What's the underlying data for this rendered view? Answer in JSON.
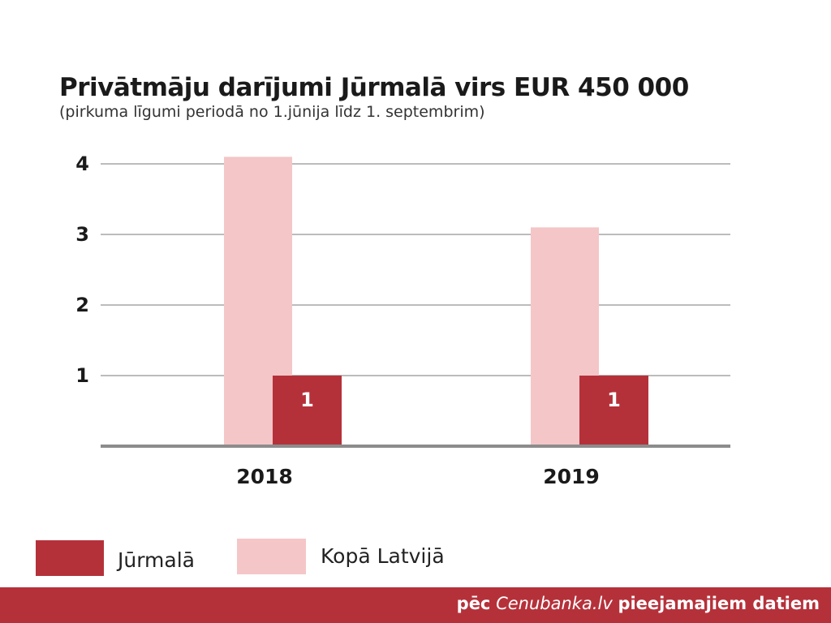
{
  "colors": {
    "jurmala": "#b5313a",
    "latvia": "#f4c6c8",
    "grid": "#7a7a7a",
    "axis": "#8c8c8c",
    "footer_bg": "#b5313a"
  },
  "chart_data": {
    "type": "bar",
    "title": "Privātmāju darījumi Jūrmalā virs EUR 450 000",
    "subtitle": "(pirkuma līgumi periodā no 1.jūnija līdz 1. septembrim)",
    "categories": [
      "2018",
      "2019"
    ],
    "series": [
      {
        "name": "Kopā Latvijā",
        "values": [
          4.1,
          3.1
        ],
        "color": "#f4c6c8"
      },
      {
        "name": "Jūrmalā",
        "values": [
          1,
          1
        ],
        "color": "#b5313a"
      }
    ],
    "data_labels": [
      "1",
      "1"
    ],
    "yticks": [
      "1",
      "2",
      "3",
      "4"
    ],
    "ylim": [
      0,
      4.4
    ],
    "grid": true,
    "legend_position": "bottom-left"
  },
  "legend": {
    "items": [
      {
        "label": "Jūrmalā",
        "color": "#b5313a"
      },
      {
        "label": "Kopā Latvijā",
        "color": "#f4c6c8"
      }
    ]
  },
  "footer": {
    "prefix": "pēc",
    "source": "Cenubanka.lv",
    "suffix": "pieejamajiem datiem"
  }
}
